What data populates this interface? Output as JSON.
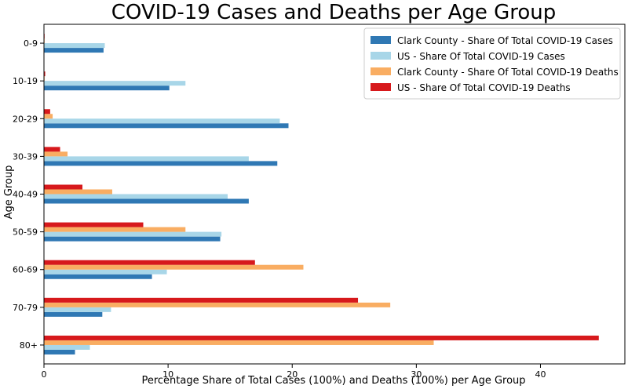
{
  "chart_data": {
    "type": "bar",
    "orientation": "horizontal",
    "title": "COVID-19 Cases and Deaths per Age Group",
    "xlabel": "Percentage Share of Total Cases (100%) and Deaths (100%) per Age Group",
    "ylabel": "Age Group",
    "xlim": [
      0,
      46.8
    ],
    "xticks": [
      0,
      10,
      20,
      30,
      40
    ],
    "grid": false,
    "legend_position": "top-right",
    "categories": [
      "0-9",
      "10-19",
      "20-29",
      "30-39",
      "40-49",
      "50-59",
      "60-69",
      "70-79",
      "80+"
    ],
    "series": [
      {
        "name": "Clark County - Share Of Total COVID-19 Cases",
        "color": "#2f78b4",
        "values": [
          4.8,
          10.1,
          19.7,
          18.8,
          16.5,
          14.2,
          8.7,
          4.7,
          2.5
        ]
      },
      {
        "name": "US - Share Of Total COVID-19 Cases",
        "color": "#a8d6e8",
        "values": [
          4.9,
          11.4,
          19.0,
          16.5,
          14.8,
          14.3,
          9.9,
          5.4,
          3.7
        ]
      },
      {
        "name": "Clark County - Share Of Total COVID-19 Deaths",
        "color": "#f9ad62",
        "values": [
          0.05,
          0.05,
          0.7,
          1.9,
          5.5,
          11.4,
          20.9,
          27.9,
          31.4
        ]
      },
      {
        "name": "US - Share Of Total COVID-19 Deaths",
        "color": "#d7191c",
        "values": [
          0.05,
          0.1,
          0.5,
          1.3,
          3.1,
          8.0,
          17.0,
          25.3,
          44.7
        ]
      }
    ]
  }
}
